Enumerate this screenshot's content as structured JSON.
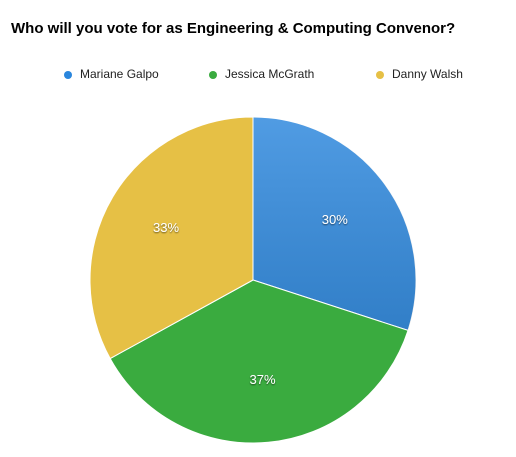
{
  "chart_data": {
    "type": "pie",
    "title": "Who will you vote for as Engineering & Computing Convenor?",
    "categories": [
      "Mariane Galpo",
      "Jessica McGrath",
      "Danny Walsh"
    ],
    "values": [
      30,
      37,
      33
    ],
    "value_labels": [
      "30%",
      "37%",
      "33%"
    ],
    "colors": [
      "#2a86dd",
      "#3aab3f",
      "#e6c045"
    ],
    "legend": "top"
  }
}
